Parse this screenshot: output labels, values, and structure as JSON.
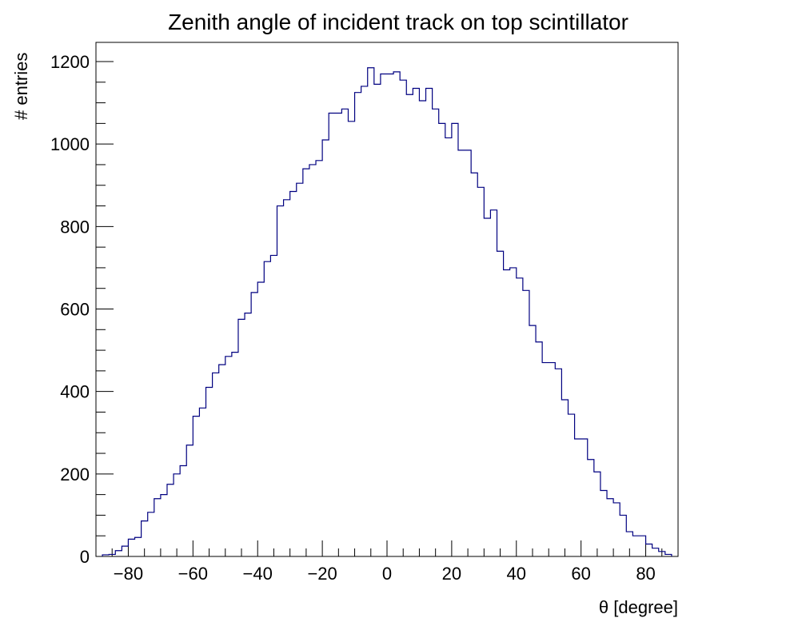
{
  "chart_data": {
    "type": "bar",
    "title": "Zenith angle of incident track on top scintillator",
    "xlabel": "θ [degree]",
    "ylabel": "# entries",
    "xlim": [
      -90,
      90
    ],
    "ylim": [
      0,
      1200
    ],
    "x_ticks": [
      "−80",
      "−60",
      "−40",
      "−20",
      "0",
      "20",
      "40",
      "60",
      "80"
    ],
    "y_ticks": [
      "0",
      "200",
      "400",
      "600",
      "800",
      "1000",
      "1200"
    ],
    "bin_width": 2,
    "series": [
      {
        "color": "#000080",
        "x_bin_low": [
          -88,
          -86,
          -84,
          -82,
          -80,
          -78,
          -76,
          -74,
          -72,
          -70,
          -68,
          -66,
          -64,
          -62,
          -60,
          -58,
          -56,
          -54,
          -52,
          -50,
          -48,
          -46,
          -44,
          -42,
          -40,
          -38,
          -36,
          -34,
          -32,
          -30,
          -28,
          -26,
          -24,
          -22,
          -20,
          -18,
          -16,
          -14,
          -12,
          -10,
          -8,
          -6,
          -4,
          -2,
          0,
          2,
          4,
          6,
          8,
          10,
          12,
          14,
          16,
          18,
          20,
          22,
          24,
          26,
          28,
          30,
          32,
          34,
          36,
          38,
          40,
          42,
          44,
          46,
          48,
          50,
          52,
          54,
          56,
          58,
          60,
          62,
          64,
          66,
          68,
          70,
          72,
          74,
          76,
          78,
          80,
          82,
          84,
          86
        ],
        "values": [
          4,
          5,
          14,
          25,
          42,
          46,
          86,
          107,
          140,
          150,
          175,
          200,
          220,
          270,
          340,
          360,
          410,
          445,
          465,
          485,
          495,
          575,
          590,
          640,
          665,
          715,
          730,
          850,
          865,
          885,
          905,
          940,
          950,
          960,
          1010,
          1075,
          1075,
          1085,
          1055,
          1125,
          1140,
          1185,
          1145,
          1170,
          1170,
          1175,
          1155,
          1120,
          1135,
          1105,
          1135,
          1085,
          1050,
          1015,
          1050,
          985,
          985,
          930,
          895,
          820,
          840,
          740,
          695,
          700,
          675,
          645,
          560,
          520,
          470,
          470,
          455,
          380,
          345,
          285,
          285,
          235,
          205,
          160,
          140,
          130,
          100,
          60,
          50,
          50,
          30,
          20,
          12,
          5
        ]
      }
    ]
  }
}
